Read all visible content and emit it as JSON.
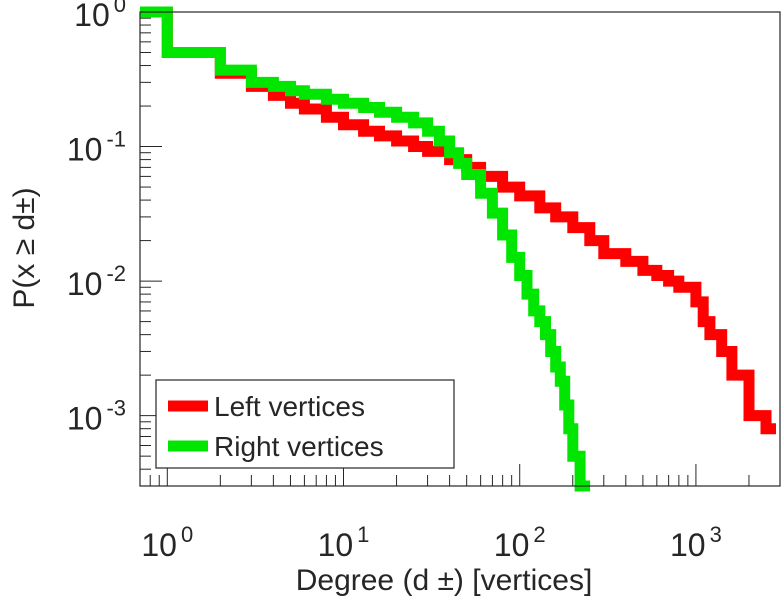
{
  "chart_data": {
    "type": "line",
    "step": true,
    "xscale": "log",
    "yscale": "log",
    "xlim": [
      0.7,
      3000
    ],
    "ylim": [
      0.0003,
      1.0
    ],
    "xlabel": "Degree (d ±) [vertices]",
    "ylabel": "P(x ≥ d±)",
    "xticks": [
      {
        "value": 1,
        "base": "10",
        "exp": "0"
      },
      {
        "value": 10,
        "base": "10",
        "exp": "1"
      },
      {
        "value": 100,
        "base": "10",
        "exp": "2"
      },
      {
        "value": 1000,
        "base": "10",
        "exp": "3"
      }
    ],
    "yticks": [
      {
        "value": 1,
        "base": "10",
        "exp": "0"
      },
      {
        "value": 0.1,
        "base": "10",
        "exp": "-1"
      },
      {
        "value": 0.01,
        "base": "10",
        "exp": "-2"
      },
      {
        "value": 0.001,
        "base": "10",
        "exp": "-3"
      }
    ],
    "legend_position": "bottom-left",
    "series": [
      {
        "name": "Left vertices",
        "color": "#ff0000",
        "x": [
          0.7,
          1,
          2,
          3,
          4,
          5,
          6,
          8,
          10,
          13,
          16,
          20,
          25,
          30,
          40,
          50,
          60,
          80,
          100,
          130,
          160,
          200,
          250,
          300,
          400,
          500,
          600,
          700,
          800,
          1000,
          1100,
          1200,
          1400,
          1600,
          2000,
          2500
        ],
        "y": [
          1.0,
          0.5,
          0.35,
          0.28,
          0.24,
          0.21,
          0.19,
          0.165,
          0.145,
          0.13,
          0.12,
          0.11,
          0.1,
          0.092,
          0.08,
          0.07,
          0.06,
          0.05,
          0.043,
          0.035,
          0.03,
          0.025,
          0.02,
          0.016,
          0.014,
          0.012,
          0.011,
          0.01,
          0.009,
          0.007,
          0.005,
          0.004,
          0.003,
          0.002,
          0.001,
          0.0008
        ]
      },
      {
        "name": "Right vertices",
        "color": "#00e600",
        "x": [
          0.7,
          1,
          2,
          3,
          4,
          5,
          6,
          8,
          10,
          13,
          16,
          20,
          25,
          30,
          35,
          40,
          45,
          50,
          60,
          70,
          80,
          90,
          100,
          110,
          120,
          130,
          140,
          150,
          160,
          170,
          180,
          190,
          200,
          220
        ],
        "y": [
          1.0,
          0.5,
          0.37,
          0.3,
          0.28,
          0.26,
          0.245,
          0.225,
          0.21,
          0.195,
          0.18,
          0.165,
          0.15,
          0.13,
          0.11,
          0.09,
          0.075,
          0.062,
          0.045,
          0.032,
          0.022,
          0.015,
          0.011,
          0.008,
          0.006,
          0.005,
          0.004,
          0.003,
          0.0023,
          0.0018,
          0.0012,
          0.0008,
          0.0005,
          0.0003
        ]
      }
    ]
  }
}
